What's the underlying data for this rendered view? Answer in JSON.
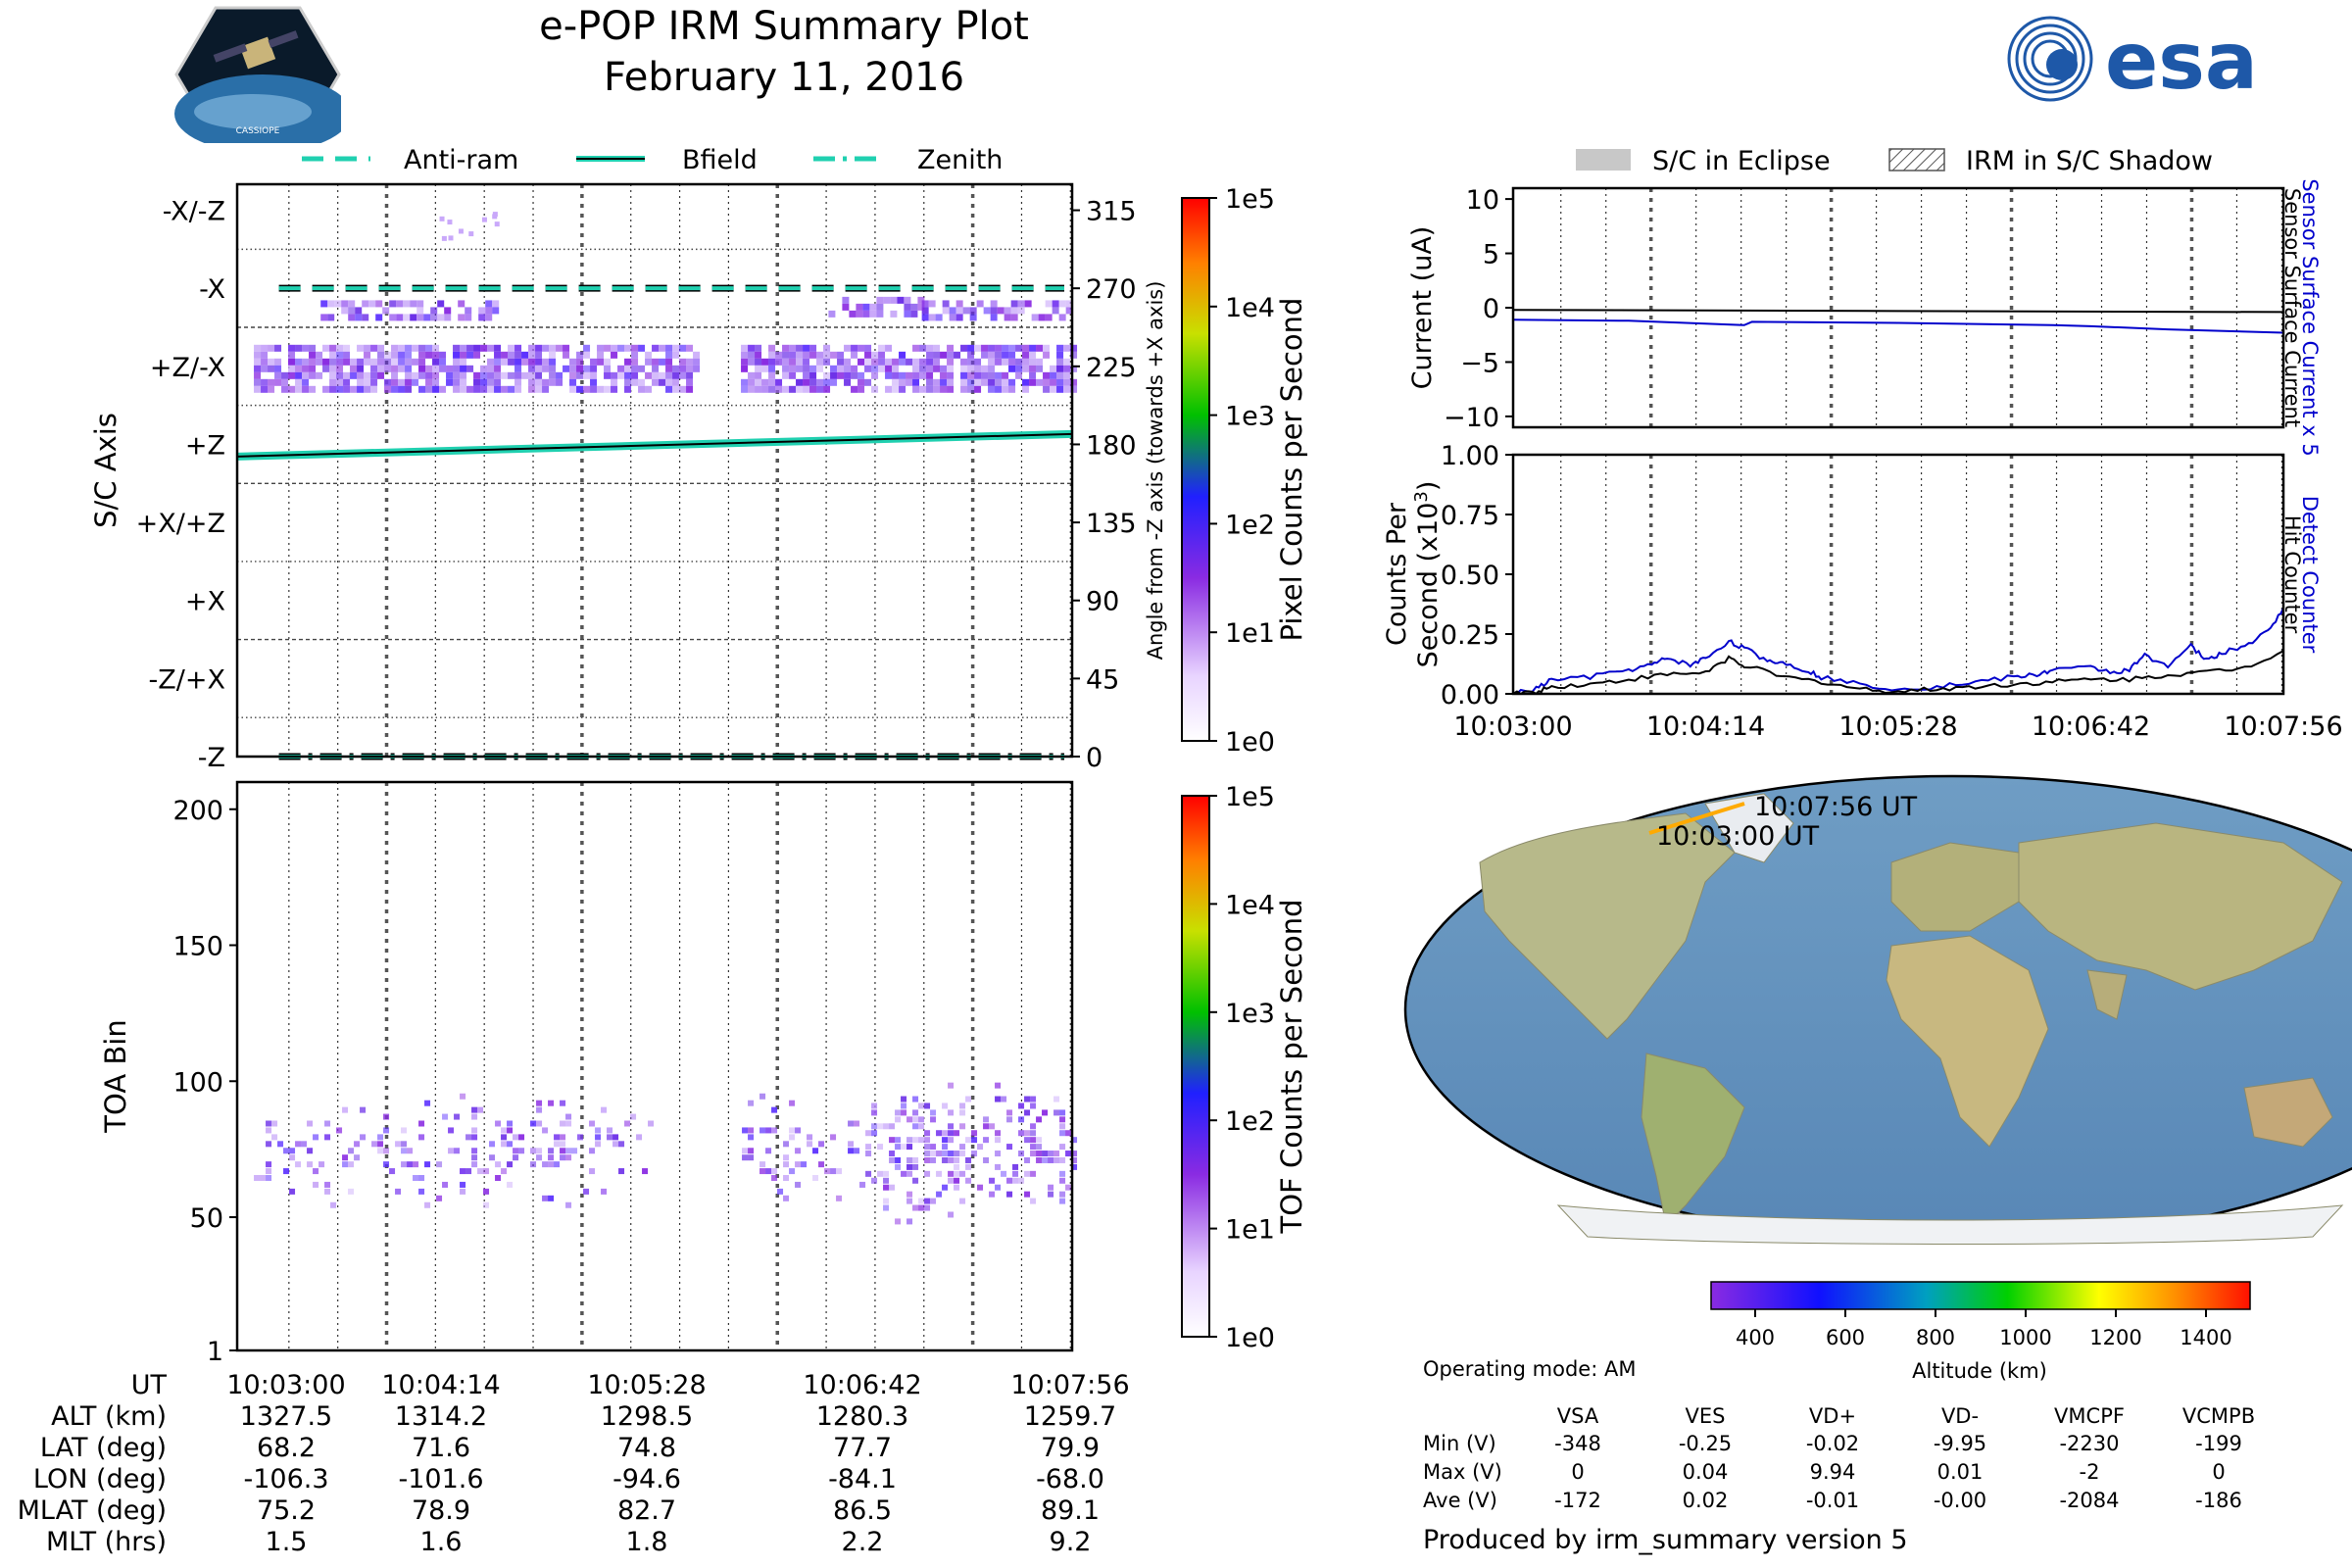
{
  "header": {
    "title": "e-POP IRM Summary Plot",
    "date": "February 11, 2016",
    "esa_logo_text": "esa",
    "mission_logo_text": "CASSIOPE"
  },
  "legend_left": {
    "items": [
      {
        "label": "Anti-ram",
        "style": "dashed"
      },
      {
        "label": "Bfield",
        "style": "solid"
      },
      {
        "label": "Zenith",
        "style": "dashdot"
      }
    ],
    "color": "#20d0b0"
  },
  "legend_right": {
    "eclipse_label": "S/C in Eclipse",
    "shadow_label": "IRM in S/C Shadow"
  },
  "colors": {
    "line_teal": "#20d0b0",
    "detect_blue": "#0000cc",
    "track_orange": "#ffaa00"
  },
  "chart_data": [
    {
      "id": "sc_axis",
      "type": "heatmap",
      "ylabel": "S/C Axis",
      "y2label": "Angle from -Z axis (towards +X axis)",
      "yticks": [
        "-X/-Z",
        "-X",
        "+Z/-X",
        "+Z",
        "+X/+Z",
        "+X",
        "-Z/+X",
        "-Z"
      ],
      "y2ticks": [
        "315",
        "270",
        "225",
        "180",
        "135",
        "90",
        "45",
        "0"
      ],
      "ylim": [
        0,
        330
      ],
      "colorbar_label": "Pixel Counts per Second",
      "colorbar_ticks": [
        "1e0",
        "1e1",
        "1e2",
        "1e3",
        "1e4",
        "1e5"
      ],
      "bands": [
        {
          "angle": 225,
          "x": [
            0.02,
            1.0
          ],
          "gap": [
            0.55,
            0.6
          ],
          "intensity": 0.55
        },
        {
          "angle": 258,
          "x": [
            0.1,
            0.31
          ],
          "intensity": 0.35
        },
        {
          "angle": 258,
          "x": [
            0.82,
            1.0
          ],
          "intensity": 0.4
        },
        {
          "angle": 260,
          "x": [
            0.7,
            0.82
          ],
          "intensity": 0.25
        }
      ],
      "lines": [
        {
          "name": "Anti-ram",
          "angle": 270,
          "style": "dashed"
        },
        {
          "name": "Bfield",
          "angle_start": 173,
          "angle_end": 186,
          "style": "solid"
        },
        {
          "name": "Zenith",
          "angle": 0,
          "style": "dashdot"
        }
      ]
    },
    {
      "id": "toa",
      "type": "heatmap",
      "ylabel": "TOA Bin",
      "yticks": [
        "1",
        "50",
        "100",
        "150",
        "200"
      ],
      "ylim": [
        1,
        210
      ],
      "colorbar_label": "TOF Counts per Second",
      "colorbar_ticks": [
        "1e0",
        "1e1",
        "1e2",
        "1e3",
        "1e4",
        "1e5"
      ],
      "x_ticks": [
        "10:03:00",
        "10:04:14",
        "10:05:28",
        "10:06:42",
        "10:07:56"
      ]
    },
    {
      "id": "current",
      "type": "line",
      "ylabel": "Current (uA)",
      "y2label_1": "Sensor Surface Current x 5",
      "y2label_2": "Sensor Surface Current",
      "ylim": [
        -11,
        11
      ],
      "yticks": [
        "10",
        "5",
        "0",
        "−5",
        "−10"
      ],
      "series": [
        {
          "name": "Sensor Surface Current x 5",
          "color": "#0000cc",
          "x": [
            0,
            0.15,
            0.3,
            0.31,
            0.5,
            0.7,
            0.75,
            0.85,
            1.0
          ],
          "y": [
            -1.1,
            -1.2,
            -1.6,
            -1.3,
            -1.4,
            -1.6,
            -1.7,
            -2.0,
            -2.3
          ]
        },
        {
          "name": "Sensor Surface Current",
          "color": "#000000",
          "x": [
            0,
            0.5,
            1.0
          ],
          "y": [
            -0.2,
            -0.3,
            -0.4
          ]
        }
      ]
    },
    {
      "id": "counts",
      "type": "line",
      "ylabel": "Counts Per Second (x10³)",
      "ylabel_line1": "Counts Per",
      "ylabel_line2": "Second (x10",
      "ylabel_exp": "3",
      "ylabel_close": ")",
      "y2label_1": "Detect Counter",
      "y2label_2": "Hit Counter",
      "ylim": [
        0,
        1.0
      ],
      "yticks": [
        "1.00",
        "0.75",
        "0.50",
        "0.25",
        "0.00"
      ],
      "x_ticks": [
        "10:03:00",
        "10:04:14",
        "10:05:28",
        "10:06:42",
        "10:07:56"
      ],
      "series": [
        {
          "name": "Detect Counter",
          "color": "#0000cc",
          "x": [
            0,
            0.03,
            0.05,
            0.1,
            0.15,
            0.18,
            0.2,
            0.23,
            0.25,
            0.28,
            0.3,
            0.33,
            0.35,
            0.38,
            0.4,
            0.45,
            0.5,
            0.55,
            0.6,
            0.65,
            0.68,
            0.7,
            0.75,
            0.78,
            0.8,
            0.82,
            0.85,
            0.88,
            0.9,
            0.92,
            0.95,
            0.98,
            1.0
          ],
          "y": [
            0.0,
            0.02,
            0.06,
            0.07,
            0.1,
            0.12,
            0.15,
            0.12,
            0.15,
            0.22,
            0.19,
            0.14,
            0.13,
            0.1,
            0.07,
            0.04,
            0.02,
            0.03,
            0.05,
            0.07,
            0.08,
            0.1,
            0.11,
            0.09,
            0.1,
            0.16,
            0.12,
            0.2,
            0.14,
            0.17,
            0.2,
            0.26,
            0.36
          ]
        },
        {
          "name": "Hit Counter",
          "color": "#000000",
          "x": [
            0,
            0.03,
            0.05,
            0.1,
            0.15,
            0.2,
            0.25,
            0.28,
            0.3,
            0.35,
            0.4,
            0.45,
            0.5,
            0.55,
            0.6,
            0.65,
            0.7,
            0.75,
            0.8,
            0.85,
            0.9,
            0.95,
            1.0
          ],
          "y": [
            0.0,
            0.01,
            0.03,
            0.04,
            0.06,
            0.08,
            0.09,
            0.15,
            0.12,
            0.07,
            0.05,
            0.02,
            0.01,
            0.02,
            0.03,
            0.04,
            0.05,
            0.06,
            0.06,
            0.08,
            0.09,
            0.11,
            0.18
          ]
        }
      ]
    }
  ],
  "map": {
    "start_label": "10:03:00 UT",
    "end_label": "10:07:56 UT",
    "colorbar_ticks": [
      "400",
      "600",
      "800",
      "1000",
      "1200",
      "1400"
    ],
    "colorbar_label": "Altitude (km)"
  },
  "ephemeris": {
    "rows": [
      {
        "label": "UT",
        "values": [
          "10:03:00",
          "10:04:14",
          "10:05:28",
          "10:06:42",
          "10:07:56"
        ]
      },
      {
        "label": "ALT (km)",
        "values": [
          "1327.5",
          "1314.2",
          "1298.5",
          "1280.3",
          "1259.7"
        ]
      },
      {
        "label": "LAT (deg)",
        "values": [
          "68.2",
          "71.6",
          "74.8",
          "77.7",
          "79.9"
        ]
      },
      {
        "label": "LON (deg)",
        "values": [
          "-106.3",
          "-101.6",
          "-94.6",
          "-84.1",
          "-68.0"
        ]
      },
      {
        "label": "MLAT (deg)",
        "values": [
          "75.2",
          "78.9",
          "82.7",
          "86.5",
          "89.1"
        ]
      },
      {
        "label": "MLT (hrs)",
        "values": [
          "1.5",
          "1.6",
          "1.8",
          "2.2",
          "9.2"
        ]
      }
    ]
  },
  "status": {
    "operating_mode": "Operating mode: AM",
    "table_headers": [
      "VSA",
      "VES",
      "VD+",
      "VD-",
      "VMCPF",
      "VCMPB"
    ],
    "table_rows": [
      {
        "label": "Min (V)",
        "values": [
          "-348",
          "-0.25",
          "-0.02",
          "-9.95",
          "-2230",
          "-199"
        ]
      },
      {
        "label": "Max (V)",
        "values": [
          "0",
          "0.04",
          "9.94",
          "0.01",
          "-2",
          "0"
        ]
      },
      {
        "label": "Ave (V)",
        "values": [
          "-172",
          "0.02",
          "-0.01",
          "-0.00",
          "-2084",
          "-186"
        ]
      }
    ],
    "footer": "Produced by irm_summary version 5"
  }
}
